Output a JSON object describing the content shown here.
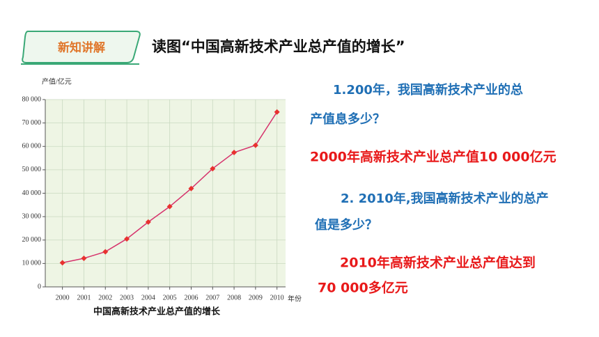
{
  "header": {
    "badge": "新知讲解",
    "title": "读图“中国高新技术产业总产值的增长”"
  },
  "chart_data": {
    "type": "line",
    "y_label": "产值/亿元",
    "x_label": "年份",
    "caption": "中国高新技术产业总产值的增长",
    "x": [
      2000,
      2001,
      2002,
      2003,
      2004,
      2005,
      2006,
      2007,
      2008,
      2009,
      2010
    ],
    "series": [
      {
        "color": "#d6336c",
        "marker_color": "#e8312f",
        "values": [
          10300,
          12200,
          15000,
          20500,
          27700,
          34300,
          42000,
          50500,
          57400,
          60500,
          74700
        ]
      }
    ],
    "xlim": [
      1999.2,
      2010.4
    ],
    "xticks": [
      2000,
      2001,
      2002,
      2003,
      2004,
      2005,
      2006,
      2007,
      2008,
      2009,
      2010
    ],
    "ylim": [
      0,
      80000
    ],
    "yticks": [
      0,
      {
        "value": 10000,
        "label": "10 000"
      },
      {
        "value": 20000,
        "label": "20 000"
      },
      {
        "value": 30000,
        "label": "30 000"
      },
      {
        "value": 40000,
        "label": "40 000"
      },
      {
        "value": 50000,
        "label": "50 000"
      },
      {
        "value": 60000,
        "label": "60 000"
      },
      {
        "value": 70000,
        "label": "70 000"
      },
      {
        "value": 80000,
        "label": "80 000"
      }
    ],
    "grid": true,
    "background": "#eef5e4"
  },
  "questions": [
    {
      "question": [
        "1.200年，我国高新技术产业的总",
        "产值息多少？"
      ],
      "answer": [
        "2000年高新技术产业总产值10 000亿元"
      ]
    },
    {
      "question": [
        "2. 2010年,我国高新技术产业的总产",
        "值是多少？"
      ],
      "answer": [
        "2010年高新技术产业总产值达到",
        "70 000多亿元"
      ]
    }
  ]
}
